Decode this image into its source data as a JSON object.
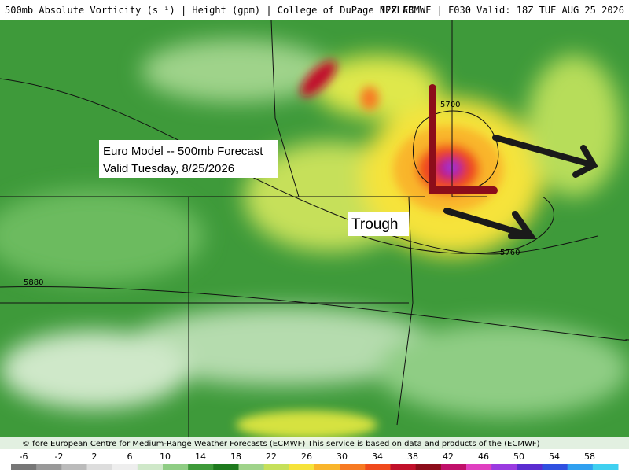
{
  "header": {
    "left": "500mb Absolute Vorticity (s⁻¹) | Height (gpm) | College of DuPage NEXLAB",
    "right": "12Z ECMWF | F030 Valid: 18Z TUE AUG 25 2026"
  },
  "annotations": {
    "title_line1": "Euro Model -- 500mb Forecast",
    "title_line2": "Valid Tuesday, 8/25/2026",
    "trough": "Trough"
  },
  "contours": {
    "c1": "5700",
    "c2": "5760",
    "c3": "5880"
  },
  "copyright": "© fore European Centre for Medium-Range Weather Forecasts (ECMWF) This service is based on data and products of the (ECMWF)",
  "colorbar": {
    "ticks": [
      -6,
      -2,
      2,
      6,
      10,
      14,
      18,
      22,
      26,
      30,
      34,
      38,
      42,
      46,
      50,
      54,
      58
    ]
  }
}
